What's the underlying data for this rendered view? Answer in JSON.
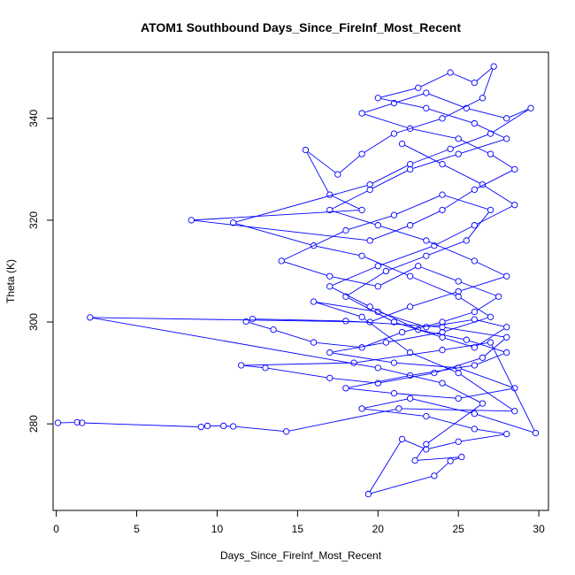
{
  "chart_data": {
    "type": "line",
    "title": "ATOM1 Southbound Days_Since_FireInf_Most_Recent",
    "xlabel": "Days_Since_FireInf_Most_Recent",
    "ylabel": "Theta (K)",
    "xlim": [
      -0.2,
      30.6
    ],
    "ylim": [
      263,
      353
    ],
    "xticks": [
      0,
      5,
      10,
      15,
      20,
      25,
      30
    ],
    "yticks": [
      280,
      300,
      320,
      340
    ],
    "grid": false,
    "legend": "none",
    "marker": "open-circle",
    "color": "#0000ff",
    "series": [
      {
        "values": [
          [
            0.1,
            280.2
          ],
          [
            1.3,
            280.3
          ],
          [
            1.6,
            280.2
          ],
          [
            9.0,
            279.4
          ],
          [
            9.4,
            279.6
          ],
          [
            10.4,
            279.6
          ],
          [
            11.0,
            279.5
          ],
          [
            14.3,
            278.5
          ],
          [
            21.3,
            283.0
          ],
          [
            28.5,
            282.5
          ],
          [
            25.0,
            290.0
          ],
          [
            22.0,
            294.0
          ],
          [
            19.0,
            301.0
          ],
          [
            16.0,
            304.0
          ],
          [
            20.0,
            302.0
          ],
          [
            23.0,
            299.0
          ],
          [
            26.0,
            300.5
          ],
          [
            28.0,
            299.0
          ],
          [
            26.0,
            295.0
          ],
          [
            24.0,
            297.0
          ],
          [
            21.0,
            300.0
          ],
          [
            18.0,
            305.0
          ],
          [
            20.5,
            310.0
          ],
          [
            23.0,
            313.0
          ],
          [
            25.5,
            316.0
          ],
          [
            27.0,
            322.0
          ],
          [
            24.0,
            325.0
          ],
          [
            21.0,
            321.0
          ],
          [
            18.0,
            318.0
          ],
          [
            14.0,
            312.0
          ],
          [
            17.0,
            309.0
          ],
          [
            20.0,
            307.0
          ],
          [
            22.5,
            311.0
          ],
          [
            25.0,
            308.0
          ],
          [
            27.5,
            305.0
          ],
          [
            26.0,
            302.0
          ],
          [
            24.0,
            300.0
          ],
          [
            21.5,
            298.0
          ],
          [
            19.0,
            295.0
          ],
          [
            16.0,
            296.0
          ],
          [
            13.5,
            298.5
          ],
          [
            11.8,
            300.1
          ],
          [
            12.2,
            300.6
          ],
          [
            18.0,
            300.2
          ],
          [
            24.0,
            299.0
          ],
          [
            28.0,
            297.0
          ],
          [
            26.5,
            293.0
          ],
          [
            23.5,
            290.0
          ],
          [
            20.0,
            288.0
          ],
          [
            17.0,
            289.0
          ],
          [
            13.0,
            291.0
          ],
          [
            11.5,
            291.5
          ],
          [
            18.5,
            292.0
          ],
          [
            24.0,
            294.5
          ],
          [
            27.0,
            296.0
          ],
          [
            29.8,
            278.2
          ],
          [
            26.0,
            282.0
          ],
          [
            22.0,
            285.0
          ],
          [
            19.0,
            283.0
          ],
          [
            23.0,
            281.5
          ],
          [
            26.0,
            279.0
          ],
          [
            28.0,
            278.0
          ],
          [
            25.0,
            276.5
          ],
          [
            23.0,
            275.0
          ],
          [
            21.5,
            277.0
          ],
          [
            19.4,
            266.2
          ],
          [
            23.5,
            269.8
          ],
          [
            24.5,
            272.7
          ],
          [
            25.2,
            273.5
          ],
          [
            22.3,
            272.8
          ],
          [
            23.0,
            276.0
          ],
          [
            26.5,
            284.0
          ],
          [
            24.0,
            288.0
          ],
          [
            20.0,
            291.0
          ],
          [
            2.1,
            300.9
          ],
          [
            19.5,
            300.0
          ],
          [
            22.0,
            303.0
          ],
          [
            25.0,
            306.0
          ],
          [
            28.0,
            309.0
          ],
          [
            26.0,
            312.0
          ],
          [
            23.0,
            316.0
          ],
          [
            20.0,
            319.0
          ],
          [
            17.0,
            322.0
          ],
          [
            19.5,
            326.0
          ],
          [
            22.0,
            330.0
          ],
          [
            25.0,
            333.0
          ],
          [
            28.0,
            336.0
          ],
          [
            26.0,
            339.0
          ],
          [
            23.0,
            342.0
          ],
          [
            20.0,
            344.0
          ],
          [
            22.5,
            346.0
          ],
          [
            24.5,
            349.0
          ],
          [
            26.0,
            347.0
          ],
          [
            27.2,
            350.2
          ],
          [
            26.5,
            344.0
          ],
          [
            24.0,
            340.0
          ],
          [
            21.0,
            337.0
          ],
          [
            19.0,
            333.0
          ],
          [
            17.5,
            329.0
          ],
          [
            15.5,
            333.8
          ],
          [
            17.0,
            325.0
          ],
          [
            19.0,
            322.0
          ],
          [
            8.4,
            320.0
          ],
          [
            19.5,
            316.0
          ],
          [
            22.0,
            319.0
          ],
          [
            24.0,
            322.0
          ],
          [
            26.0,
            326.0
          ],
          [
            28.5,
            330.0
          ],
          [
            27.0,
            333.0
          ],
          [
            25.0,
            336.0
          ],
          [
            22.0,
            338.0
          ],
          [
            19.0,
            341.0
          ],
          [
            21.0,
            343.0
          ],
          [
            23.0,
            345.0
          ],
          [
            25.5,
            342.0
          ],
          [
            28.0,
            340.0
          ],
          [
            29.5,
            342.0
          ],
          [
            27.0,
            337.0
          ],
          [
            24.5,
            334.0
          ],
          [
            22.0,
            331.0
          ],
          [
            19.5,
            327.0
          ],
          [
            11.0,
            319.5
          ],
          [
            16.0,
            315.0
          ],
          [
            19.0,
            313.0
          ],
          [
            22.0,
            309.0
          ],
          [
            25.0,
            305.0
          ],
          [
            27.0,
            301.0
          ],
          [
            24.0,
            298.0
          ],
          [
            20.5,
            296.0
          ],
          [
            17.0,
            294.0
          ],
          [
            21.0,
            292.0
          ],
          [
            25.0,
            291.0
          ],
          [
            28.5,
            287.0
          ],
          [
            25.0,
            285.0
          ],
          [
            21.0,
            286.0
          ],
          [
            18.0,
            287.0
          ],
          [
            22.0,
            289.5
          ],
          [
            26.0,
            291.5
          ],
          [
            28.0,
            294.0
          ],
          [
            25.5,
            296.5
          ],
          [
            22.5,
            298.5
          ],
          [
            19.5,
            303.0
          ],
          [
            17.0,
            307.0
          ],
          [
            20.0,
            311.0
          ],
          [
            23.5,
            315.0
          ],
          [
            26.0,
            319.0
          ],
          [
            28.5,
            323.0
          ],
          [
            26.5,
            327.0
          ],
          [
            24.0,
            331.0
          ],
          [
            21.5,
            335.0
          ]
        ]
      }
    ]
  }
}
